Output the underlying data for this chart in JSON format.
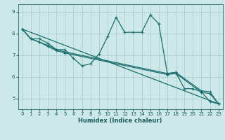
{
  "xlabel": "Humidex (Indice chaleur)",
  "background_color": "#cce8e8",
  "line_color": "#1a6e6e",
  "grid_color": "#aacece",
  "xlim": [
    -0.5,
    23.5
  ],
  "ylim": [
    4.5,
    9.35
  ],
  "yticks": [
    5,
    6,
    7,
    8,
    9
  ],
  "xticks": [
    0,
    1,
    2,
    3,
    4,
    5,
    6,
    7,
    8,
    9,
    10,
    11,
    12,
    13,
    14,
    15,
    16,
    17,
    18,
    19,
    20,
    21,
    22,
    23
  ],
  "lines": [
    {
      "x": [
        0,
        1,
        2,
        3,
        4,
        5,
        6,
        7,
        8,
        9,
        10,
        11,
        12,
        13,
        14,
        15,
        16,
        17,
        18,
        19,
        20,
        21,
        22,
        23
      ],
      "y": [
        8.2,
        7.75,
        7.75,
        7.55,
        7.25,
        7.25,
        6.85,
        6.5,
        6.6,
        7.05,
        7.85,
        8.75,
        8.05,
        8.05,
        8.05,
        8.85,
        8.45,
        6.15,
        6.2,
        5.45,
        5.45,
        5.3,
        4.85,
        4.75
      ]
    },
    {
      "x": [
        0,
        1,
        2,
        3,
        4,
        5,
        17,
        18,
        21,
        22,
        23
      ],
      "y": [
        8.2,
        7.75,
        7.6,
        7.45,
        7.25,
        7.15,
        6.15,
        6.2,
        5.35,
        5.3,
        4.75
      ]
    },
    {
      "x": [
        0,
        1,
        2,
        3,
        4,
        5,
        17,
        18,
        21,
        22,
        23
      ],
      "y": [
        8.2,
        7.75,
        7.6,
        7.4,
        7.2,
        7.1,
        6.1,
        6.15,
        5.28,
        5.22,
        4.75
      ]
    },
    {
      "x": [
        0,
        23
      ],
      "y": [
        8.2,
        4.75
      ]
    }
  ]
}
